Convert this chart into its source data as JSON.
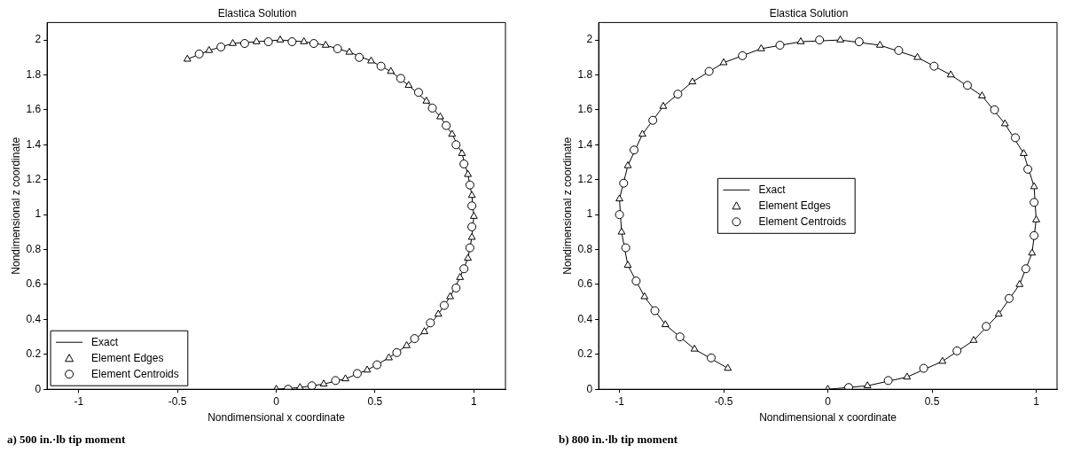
{
  "chart_data": [
    {
      "type": "scatter",
      "title": "Elastica Solution",
      "xlabel": "Nondimensional x coordinate",
      "ylabel": "Nondimensional z coordinate",
      "xlim": [
        -1.16,
        1.16
      ],
      "xticks": [
        -1,
        -0.5,
        0,
        0.5,
        1
      ],
      "ylim": [
        0,
        2.1
      ],
      "yticks": [
        0,
        0.2,
        0.4,
        0.6,
        0.8,
        1,
        1.2,
        1.4,
        1.6,
        1.8,
        2
      ],
      "grid": false,
      "legend": "bottom left",
      "annotations": [
        "a) 500 in.·lb tip moment"
      ],
      "series": [
        {
          "name": "Exact",
          "type": "line",
          "marker": "none",
          "line_style": "solid",
          "color": "#000000",
          "x": [
            0,
            0.12,
            0.24,
            0.35,
            0.46,
            0.57,
            0.66,
            0.75,
            0.82,
            0.88,
            0.93,
            0.97,
            0.99,
            1.0,
            0.99,
            0.97,
            0.94,
            0.89,
            0.83,
            0.76,
            0.67,
            0.58,
            0.48,
            0.37,
            0.25,
            0.14,
            0.02,
            -0.1,
            -0.22,
            -0.34,
            -0.45
          ],
          "values": [
            0,
            0.01,
            0.03,
            0.06,
            0.11,
            0.18,
            0.25,
            0.33,
            0.43,
            0.53,
            0.64,
            0.75,
            0.87,
            0.99,
            1.11,
            1.23,
            1.35,
            1.46,
            1.56,
            1.65,
            1.74,
            1.82,
            1.88,
            1.93,
            1.97,
            1.99,
            2.0,
            1.99,
            1.98,
            1.94,
            1.89
          ]
        },
        {
          "name": "Element Edges",
          "type": "scatter",
          "marker": "triangle",
          "color": "#000000",
          "x": [
            0,
            0.12,
            0.24,
            0.35,
            0.46,
            0.57,
            0.66,
            0.75,
            0.82,
            0.88,
            0.93,
            0.97,
            0.99,
            1.0,
            0.99,
            0.97,
            0.94,
            0.89,
            0.83,
            0.76,
            0.67,
            0.58,
            0.48,
            0.37,
            0.25,
            0.14,
            0.02,
            -0.1,
            -0.22,
            -0.34,
            -0.45
          ],
          "values": [
            0,
            0.01,
            0.03,
            0.06,
            0.11,
            0.18,
            0.25,
            0.33,
            0.43,
            0.53,
            0.64,
            0.75,
            0.87,
            0.99,
            1.11,
            1.23,
            1.35,
            1.46,
            1.56,
            1.65,
            1.74,
            1.82,
            1.88,
            1.93,
            1.97,
            1.99,
            2.0,
            1.99,
            1.98,
            1.94,
            1.89
          ]
        },
        {
          "name": "Element Centroids",
          "type": "scatter",
          "marker": "circle",
          "color": "#000000",
          "x": [
            0.06,
            0.18,
            0.3,
            0.41,
            0.51,
            0.61,
            0.7,
            0.78,
            0.85,
            0.91,
            0.95,
            0.98,
            0.99,
            0.99,
            0.98,
            0.95,
            0.91,
            0.86,
            0.79,
            0.72,
            0.63,
            0.53,
            0.42,
            0.31,
            0.19,
            0.08,
            -0.04,
            -0.16,
            -0.28,
            -0.39
          ],
          "values": [
            0,
            0.02,
            0.05,
            0.09,
            0.14,
            0.21,
            0.29,
            0.38,
            0.48,
            0.58,
            0.69,
            0.81,
            0.93,
            1.05,
            1.17,
            1.29,
            1.4,
            1.51,
            1.61,
            1.7,
            1.78,
            1.85,
            1.9,
            1.95,
            1.98,
            1.99,
            1.99,
            1.98,
            1.96,
            1.92
          ]
        }
      ]
    },
    {
      "type": "scatter",
      "title": "Elastica Solution",
      "xlabel": "Nondimensional x coordinate",
      "ylabel": "Nondimensional z coordinate",
      "xlim": [
        -1.1,
        1.1
      ],
      "xticks": [
        -1,
        -0.5,
        0,
        0.5,
        1
      ],
      "ylim": [
        0,
        2.1
      ],
      "yticks": [
        0,
        0.2,
        0.4,
        0.6,
        0.8,
        1,
        1.2,
        1.4,
        1.6,
        1.8,
        2
      ],
      "grid": false,
      "legend": "left",
      "annotations": [
        "b) 800 in.·lb tip moment"
      ],
      "series": [
        {
          "name": "Exact",
          "type": "line",
          "marker": "none",
          "line_style": "solid",
          "color": "#000000",
          "x": [
            0,
            0.19,
            0.38,
            0.55,
            0.7,
            0.82,
            0.92,
            0.98,
            1.0,
            0.99,
            0.94,
            0.85,
            0.74,
            0.59,
            0.43,
            0.25,
            0.06,
            -0.13,
            -0.32,
            -0.5,
            -0.65,
            -0.79,
            -0.89,
            -0.96,
            -1.0,
            -0.99,
            -0.96,
            -0.88,
            -0.78,
            -0.64,
            -0.48
          ],
          "values": [
            0,
            0.02,
            0.07,
            0.16,
            0.28,
            0.43,
            0.6,
            0.78,
            0.97,
            1.16,
            1.35,
            1.52,
            1.68,
            1.8,
            1.9,
            1.97,
            2.0,
            1.99,
            1.95,
            1.87,
            1.76,
            1.62,
            1.46,
            1.28,
            1.09,
            0.9,
            0.71,
            0.53,
            0.37,
            0.23,
            0.12
          ]
        },
        {
          "name": "Element Edges",
          "type": "scatter",
          "marker": "triangle",
          "color": "#000000",
          "x": [
            0,
            0.19,
            0.38,
            0.55,
            0.7,
            0.82,
            0.92,
            0.98,
            1.0,
            0.99,
            0.94,
            0.85,
            0.74,
            0.59,
            0.43,
            0.25,
            0.06,
            -0.13,
            -0.32,
            -0.5,
            -0.65,
            -0.79,
            -0.89,
            -0.96,
            -1.0,
            -0.99,
            -0.96,
            -0.88,
            -0.78,
            -0.64,
            -0.48
          ],
          "values": [
            0,
            0.02,
            0.07,
            0.16,
            0.28,
            0.43,
            0.6,
            0.78,
            0.97,
            1.16,
            1.35,
            1.52,
            1.68,
            1.8,
            1.9,
            1.97,
            2.0,
            1.99,
            1.95,
            1.87,
            1.76,
            1.62,
            1.46,
            1.28,
            1.09,
            0.9,
            0.71,
            0.53,
            0.37,
            0.23,
            0.12
          ]
        },
        {
          "name": "Element Centroids",
          "type": "scatter",
          "marker": "circle",
          "color": "#000000",
          "x": [
            0.1,
            0.29,
            0.46,
            0.62,
            0.76,
            0.87,
            0.95,
            0.99,
            0.99,
            0.96,
            0.9,
            0.8,
            0.67,
            0.51,
            0.34,
            0.15,
            -0.04,
            -0.23,
            -0.41,
            -0.57,
            -0.72,
            -0.84,
            -0.93,
            -0.98,
            -1.0,
            -0.97,
            -0.92,
            -0.83,
            -0.71,
            -0.56
          ],
          "values": [
            0.01,
            0.05,
            0.12,
            0.22,
            0.36,
            0.52,
            0.69,
            0.88,
            1.07,
            1.26,
            1.44,
            1.6,
            1.74,
            1.85,
            1.94,
            1.99,
            2.0,
            1.97,
            1.91,
            1.82,
            1.69,
            1.54,
            1.37,
            1.18,
            1.0,
            0.81,
            0.62,
            0.45,
            0.3,
            0.18
          ]
        }
      ]
    }
  ]
}
